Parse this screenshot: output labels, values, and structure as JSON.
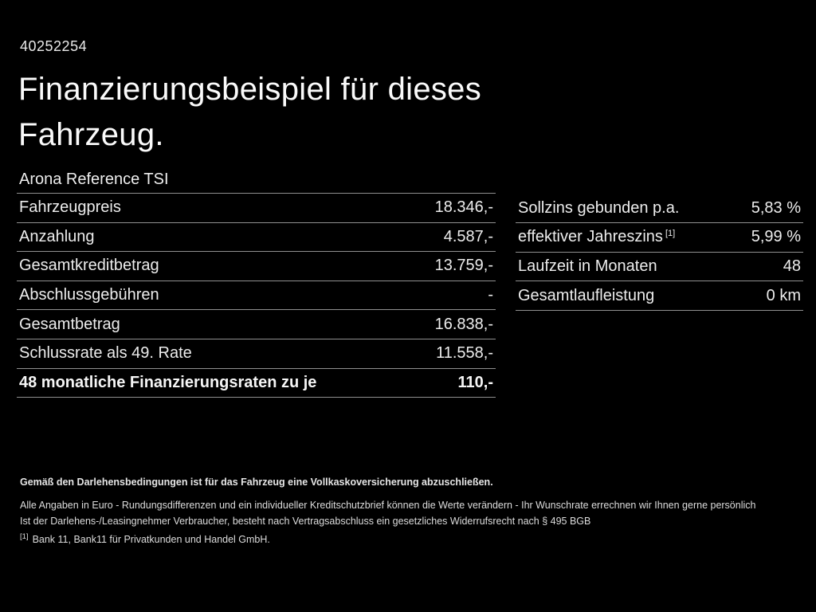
{
  "header": {
    "vehicle_id": "40252254",
    "title_line1": "Finanzierungsbeispiel für dieses",
    "title_line2": "Fahrzeug."
  },
  "model": "Arona Reference TSI",
  "left_table": {
    "rows": [
      {
        "label": "Fahrzeugpreis",
        "value": "18.346,-"
      },
      {
        "label": "Anzahlung",
        "value": "4.587,-"
      },
      {
        "label": "Gesamtkreditbetrag",
        "value": "13.759,-"
      },
      {
        "label": "Abschlussgebühren",
        "value": "-"
      },
      {
        "label": "Gesamtbetrag",
        "value": "16.838,-"
      },
      {
        "label": "Schlussrate als 49. Rate",
        "value": "11.558,-"
      }
    ],
    "total_row": {
      "label": "48 monatliche Finanzierungsraten zu je",
      "value": "110,-"
    }
  },
  "right_table": {
    "rows": [
      {
        "label": "Sollzins gebunden p.a.",
        "sup": "",
        "value": "5,83 %"
      },
      {
        "label": "effektiver Jahreszins",
        "sup": "[1]",
        "value": "5,99 %"
      },
      {
        "label": "Laufzeit in Monaten",
        "sup": "",
        "value": "48"
      },
      {
        "label": "Gesamtlaufleistung",
        "sup": "",
        "value": "0 km"
      }
    ]
  },
  "footer": {
    "bold_line": "Gemäß den Darlehensbedingungen ist für das Fahrzeug eine Vollkaskoversicherung abzuschließen.",
    "line2": "Alle Angaben in Euro - Rundungsdifferenzen und ein individueller Kreditschutzbrief können die Werte verändern - Ihr Wunschrate errechnen wir Ihnen gerne persönlich",
    "line3": "Ist der Darlehens-/Leasingnehmer Verbraucher, besteht nach Vertragsabschluss ein gesetzliches Widerrufsrecht nach § 495 BGB",
    "footnote_marker": "[1]",
    "footnote_text": "Bank 11, Bank11 für Privatkunden und Handel GmbH."
  },
  "colors": {
    "background": "#000000",
    "text": "#ededed",
    "divider": "#909090"
  }
}
